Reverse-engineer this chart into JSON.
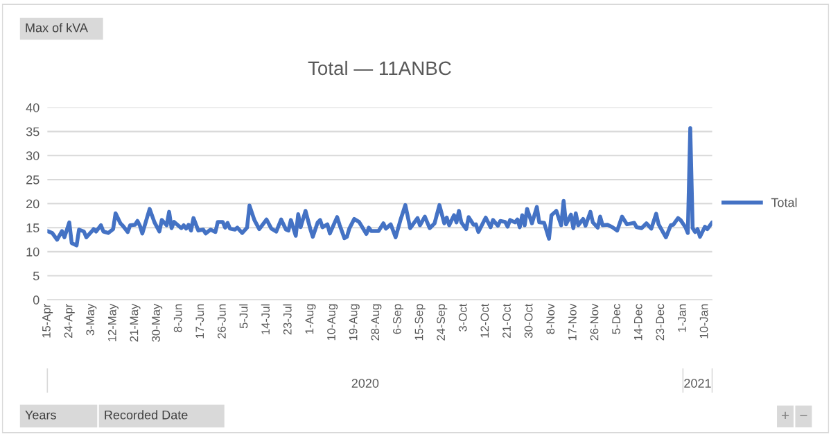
{
  "chart_data": {
    "type": "line",
    "title": "Total — 11ANBC",
    "x": [
      "2020-04-15",
      "2020-04-17",
      "2020-04-19",
      "2020-04-21",
      "2020-04-22",
      "2020-04-24",
      "2020-04-25",
      "2020-04-27",
      "2020-04-28",
      "2020-04-30",
      "2020-05-01",
      "2020-05-03",
      "2020-05-04",
      "2020-05-05",
      "2020-05-07",
      "2020-05-08",
      "2020-05-10",
      "2020-05-12",
      "2020-05-13",
      "2020-05-15",
      "2020-05-16",
      "2020-05-18",
      "2020-05-19",
      "2020-05-21",
      "2020-05-22",
      "2020-05-23",
      "2020-05-24",
      "2020-05-26",
      "2020-05-27",
      "2020-05-29",
      "2020-05-31",
      "2020-06-01",
      "2020-06-03",
      "2020-06-04",
      "2020-06-05",
      "2020-06-06",
      "2020-06-09",
      "2020-06-10",
      "2020-06-11",
      "2020-06-12",
      "2020-06-13",
      "2020-06-14",
      "2020-06-16",
      "2020-06-18",
      "2020-06-19",
      "2020-06-21",
      "2020-06-23",
      "2020-06-24",
      "2020-06-26",
      "2020-06-27",
      "2020-06-28",
      "2020-06-29",
      "2020-07-01",
      "2020-07-02",
      "2020-07-04",
      "2020-07-06",
      "2020-07-07",
      "2020-07-09",
      "2020-07-11",
      "2020-07-14",
      "2020-07-16",
      "2020-07-18",
      "2020-07-20",
      "2020-07-22",
      "2020-07-23",
      "2020-07-24",
      "2020-07-26",
      "2020-07-27",
      "2020-07-28",
      "2020-07-30",
      "2020-08-01",
      "2020-08-02",
      "2020-08-04",
      "2020-08-05",
      "2020-08-06",
      "2020-08-08",
      "2020-08-09",
      "2020-08-12",
      "2020-08-13",
      "2020-08-15",
      "2020-08-16",
      "2020-08-17",
      "2020-08-19",
      "2020-08-21",
      "2020-08-24",
      "2020-08-25",
      "2020-08-26",
      "2020-08-29",
      "2020-08-31",
      "2020-09-01",
      "2020-09-03",
      "2020-09-05",
      "2020-09-07",
      "2020-09-09",
      "2020-09-11",
      "2020-09-14",
      "2020-09-15",
      "2020-09-17",
      "2020-09-19",
      "2020-09-21",
      "2020-09-23",
      "2020-09-25",
      "2020-09-26",
      "2020-09-27",
      "2020-09-29",
      "2020-09-30",
      "2020-10-01",
      "2020-10-02",
      "2020-10-04",
      "2020-10-05",
      "2020-10-07",
      "2020-10-08",
      "2020-10-09",
      "2020-10-12",
      "2020-10-14",
      "2020-10-15",
      "2020-10-17",
      "2020-10-18",
      "2020-10-20",
      "2020-10-21",
      "2020-10-22",
      "2020-10-24",
      "2020-10-25",
      "2020-10-26",
      "2020-10-27",
      "2020-10-28",
      "2020-10-29",
      "2020-10-31",
      "2020-11-02",
      "2020-11-03",
      "2020-11-05",
      "2020-11-07",
      "2020-11-08",
      "2020-11-10",
      "2020-11-12",
      "2020-11-13",
      "2020-11-14",
      "2020-11-16",
      "2020-11-17",
      "2020-11-18",
      "2020-11-19",
      "2020-11-21",
      "2020-11-22",
      "2020-11-24",
      "2020-11-25",
      "2020-11-27",
      "2020-11-28",
      "2020-11-29",
      "2020-12-01",
      "2020-12-03",
      "2020-12-05",
      "2020-12-07",
      "2020-12-09",
      "2020-12-12",
      "2020-12-13",
      "2020-12-15",
      "2020-12-17",
      "2020-12-19",
      "2020-12-21",
      "2020-12-22",
      "2020-12-25",
      "2020-12-27",
      "2020-12-28",
      "2020-12-30",
      "2020-12-31",
      "2021-01-02",
      "2021-01-03",
      "2021-01-04",
      "2021-01-05",
      "2021-01-06",
      "2021-01-07",
      "2021-01-08",
      "2021-01-10",
      "2021-01-11",
      "2021-01-13"
    ],
    "series": [
      {
        "name": "Total",
        "color": "#4472c4",
        "values": [
          14.3,
          13.9,
          12.5,
          14.3,
          13.0,
          16.1,
          11.8,
          11.3,
          14.6,
          14.2,
          13.0,
          14.1,
          14.7,
          14.2,
          15.5,
          14.2,
          13.9,
          14.7,
          18.0,
          15.9,
          15.4,
          14.1,
          15.5,
          15.6,
          16.4,
          15.4,
          13.8,
          17.2,
          18.9,
          16.1,
          14.2,
          16.6,
          15.5,
          18.3,
          14.9,
          16.2,
          14.9,
          15.5,
          14.8,
          15.6,
          14.4,
          17.0,
          14.4,
          14.6,
          13.8,
          14.6,
          14.1,
          16.2,
          16.2,
          15.0,
          16.0,
          14.8,
          14.6,
          15.0,
          13.9,
          15.0,
          19.6,
          16.6,
          14.7,
          16.7,
          14.8,
          14.2,
          16.7,
          14.6,
          14.4,
          16.6,
          13.3,
          17.8,
          15.1,
          18.5,
          14.7,
          13.1,
          16.1,
          16.6,
          15.1,
          15.7,
          13.8,
          17.2,
          15.6,
          12.8,
          13.1,
          14.8,
          16.8,
          16.2,
          13.7,
          15.0,
          14.3,
          14.3,
          15.9,
          14.8,
          15.7,
          13.0,
          16.6,
          19.7,
          14.9,
          17.0,
          15.5,
          17.3,
          14.9,
          15.9,
          19.7,
          15.9,
          17.1,
          15.5,
          17.6,
          16.1,
          18.5,
          16.1,
          14.7,
          17.2,
          15.6,
          15.7,
          14.1,
          17.1,
          15.1,
          16.6,
          15.4,
          16.4,
          16.2,
          15.2,
          16.6,
          16.1,
          16.7,
          15.1,
          17.6,
          15.5,
          18.9,
          15.9,
          19.3,
          16.1,
          16.0,
          12.7,
          17.6,
          18.5,
          15.5,
          20.6,
          15.7,
          17.7,
          14.9,
          18.0,
          15.5,
          16.8,
          15.4,
          18.3,
          16.1,
          15.0,
          17.3,
          15.5,
          15.6,
          15.1,
          14.4,
          17.3,
          15.7,
          16.0,
          15.1,
          14.9,
          15.9,
          14.8,
          17.9,
          15.7,
          13.0,
          15.5,
          15.6,
          17.0,
          16.6,
          15.1,
          13.9,
          35.7,
          14.9,
          14.1,
          14.7,
          13.1,
          15.2,
          14.7,
          16.1
        ]
      }
    ],
    "xlim": [
      "2020-04-15",
      "2021-01-13"
    ],
    "xticks": [
      {
        "value": "2020-04-15",
        "label": "15-Apr"
      },
      {
        "value": "2020-04-24",
        "label": "24-Apr"
      },
      {
        "value": "2020-05-03",
        "label": "3-May"
      },
      {
        "value": "2020-05-12",
        "label": "12-May"
      },
      {
        "value": "2020-05-21",
        "label": "21-May"
      },
      {
        "value": "2020-05-30",
        "label": "30-May"
      },
      {
        "value": "2020-06-08",
        "label": "8-Jun"
      },
      {
        "value": "2020-06-17",
        "label": "17-Jun"
      },
      {
        "value": "2020-06-26",
        "label": "26-Jun"
      },
      {
        "value": "2020-07-05",
        "label": "5-Jul"
      },
      {
        "value": "2020-07-14",
        "label": "14-Jul"
      },
      {
        "value": "2020-07-23",
        "label": "23-Jul"
      },
      {
        "value": "2020-08-01",
        "label": "1-Aug"
      },
      {
        "value": "2020-08-10",
        "label": "10-Aug"
      },
      {
        "value": "2020-08-19",
        "label": "19-Aug"
      },
      {
        "value": "2020-08-28",
        "label": "28-Aug"
      },
      {
        "value": "2020-09-06",
        "label": "6-Sep"
      },
      {
        "value": "2020-09-15",
        "label": "15-Sep"
      },
      {
        "value": "2020-09-24",
        "label": "24-Sep"
      },
      {
        "value": "2020-10-03",
        "label": "3-Oct"
      },
      {
        "value": "2020-10-12",
        "label": "12-Oct"
      },
      {
        "value": "2020-10-21",
        "label": "21-Oct"
      },
      {
        "value": "2020-10-30",
        "label": "30-Oct"
      },
      {
        "value": "2020-11-08",
        "label": "8-Nov"
      },
      {
        "value": "2020-11-17",
        "label": "17-Nov"
      },
      {
        "value": "2020-11-26",
        "label": "26-Nov"
      },
      {
        "value": "2020-12-05",
        "label": "5-Dec"
      },
      {
        "value": "2020-12-14",
        "label": "14-Dec"
      },
      {
        "value": "2020-12-23",
        "label": "23-Dec"
      },
      {
        "value": "2021-01-01",
        "label": "1-Jan"
      },
      {
        "value": "2021-01-10",
        "label": "10-Jan"
      }
    ],
    "ylim": [
      0,
      40
    ],
    "yticks": [
      0,
      5,
      10,
      15,
      20,
      25,
      30,
      35,
      40
    ],
    "grid": "y",
    "legend": "right",
    "marker": "none",
    "line_style": "solid",
    "annotations": [
      "2020",
      "2021",
      "Max of kVA",
      "Years",
      "Recorded Date",
      "+",
      "−"
    ]
  }
}
